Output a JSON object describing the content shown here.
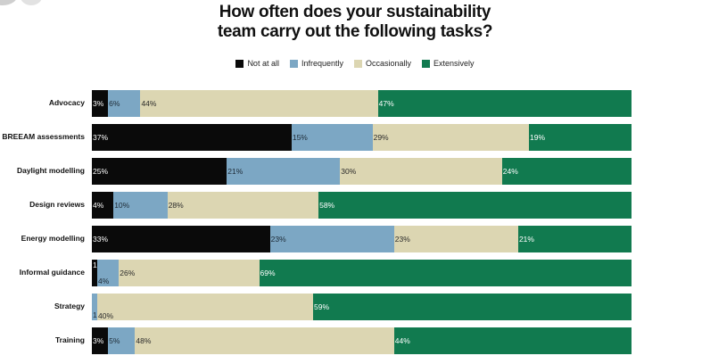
{
  "chart_data": {
    "type": "bar",
    "orientation": "horizontal",
    "stacked": true,
    "title_lines": [
      "How often does your sustainability",
      "team carry out the following tasks?"
    ],
    "legend": [
      {
        "name": "Not at all",
        "color": "#0a0a0a"
      },
      {
        "name": "Infrequently",
        "color": "#7ca7c4"
      },
      {
        "name": "Occasionally",
        "color": "#dcd6b2"
      },
      {
        "name": "Extensively",
        "color": "#117a4f"
      }
    ],
    "categories": [
      "Advocacy",
      "BREEAM assessments",
      "Daylight modelling",
      "Design reviews",
      "Energy modelling",
      "Informal guidance",
      "Strategy",
      "Training"
    ],
    "series": [
      {
        "name": "Not at all",
        "values": [
          3,
          37,
          25,
          4,
          33,
          1,
          0,
          3
        ],
        "labels": [
          "3%",
          "37%",
          "25%",
          "4%",
          "33%",
          "1%",
          "",
          "3%"
        ]
      },
      {
        "name": "Infrequently",
        "values": [
          6,
          15,
          21,
          10,
          23,
          4,
          1,
          5
        ],
        "labels": [
          "6%",
          "15%",
          "21%",
          "10%",
          "23%",
          "4%",
          "1%",
          "5%"
        ]
      },
      {
        "name": "Occasionally",
        "values": [
          44,
          29,
          30,
          28,
          23,
          26,
          40,
          48
        ],
        "labels": [
          "44%",
          "29%",
          "30%",
          "28%",
          "23%",
          "26%",
          "40%",
          "48%"
        ]
      },
      {
        "name": "Extensively",
        "values": [
          47,
          19,
          24,
          58,
          21,
          69,
          59,
          44
        ],
        "labels": [
          "47%",
          "19%",
          "24%",
          "58%",
          "21%",
          "69%",
          "59%",
          "44%"
        ]
      }
    ],
    "xlim": [
      0,
      100
    ]
  }
}
